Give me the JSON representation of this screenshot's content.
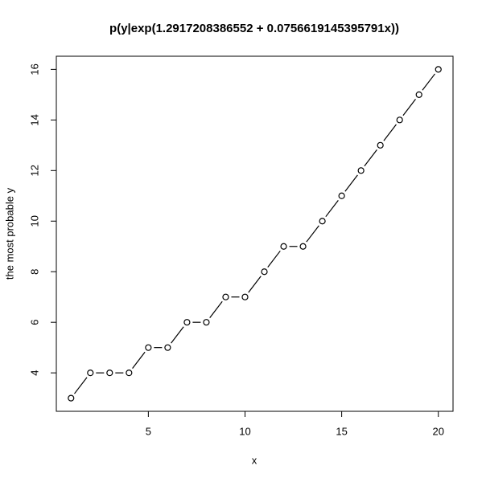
{
  "chart_data": {
    "type": "line",
    "title": "p(y|exp(1.2917208386552 + 0.0756619145395791x))",
    "x_label": "x",
    "y_label": "the most probable y",
    "x": [
      1,
      2,
      3,
      4,
      5,
      6,
      7,
      8,
      9,
      10,
      11,
      12,
      13,
      14,
      15,
      16,
      17,
      18,
      19,
      20
    ],
    "series": [
      {
        "values": [
          3,
          4,
          4,
          4,
          5,
          5,
          6,
          6,
          7,
          7,
          8,
          9,
          9,
          10,
          11,
          12,
          13,
          14,
          15,
          16
        ],
        "color": "#000000"
      }
    ],
    "xlim": [
      0.24,
      20.76
    ],
    "ylim": [
      2.48,
      16.52
    ],
    "xticks": [
      5,
      10,
      15,
      20
    ],
    "yticks": [
      4,
      6,
      8,
      10,
      12,
      14,
      16
    ],
    "grid": false
  }
}
